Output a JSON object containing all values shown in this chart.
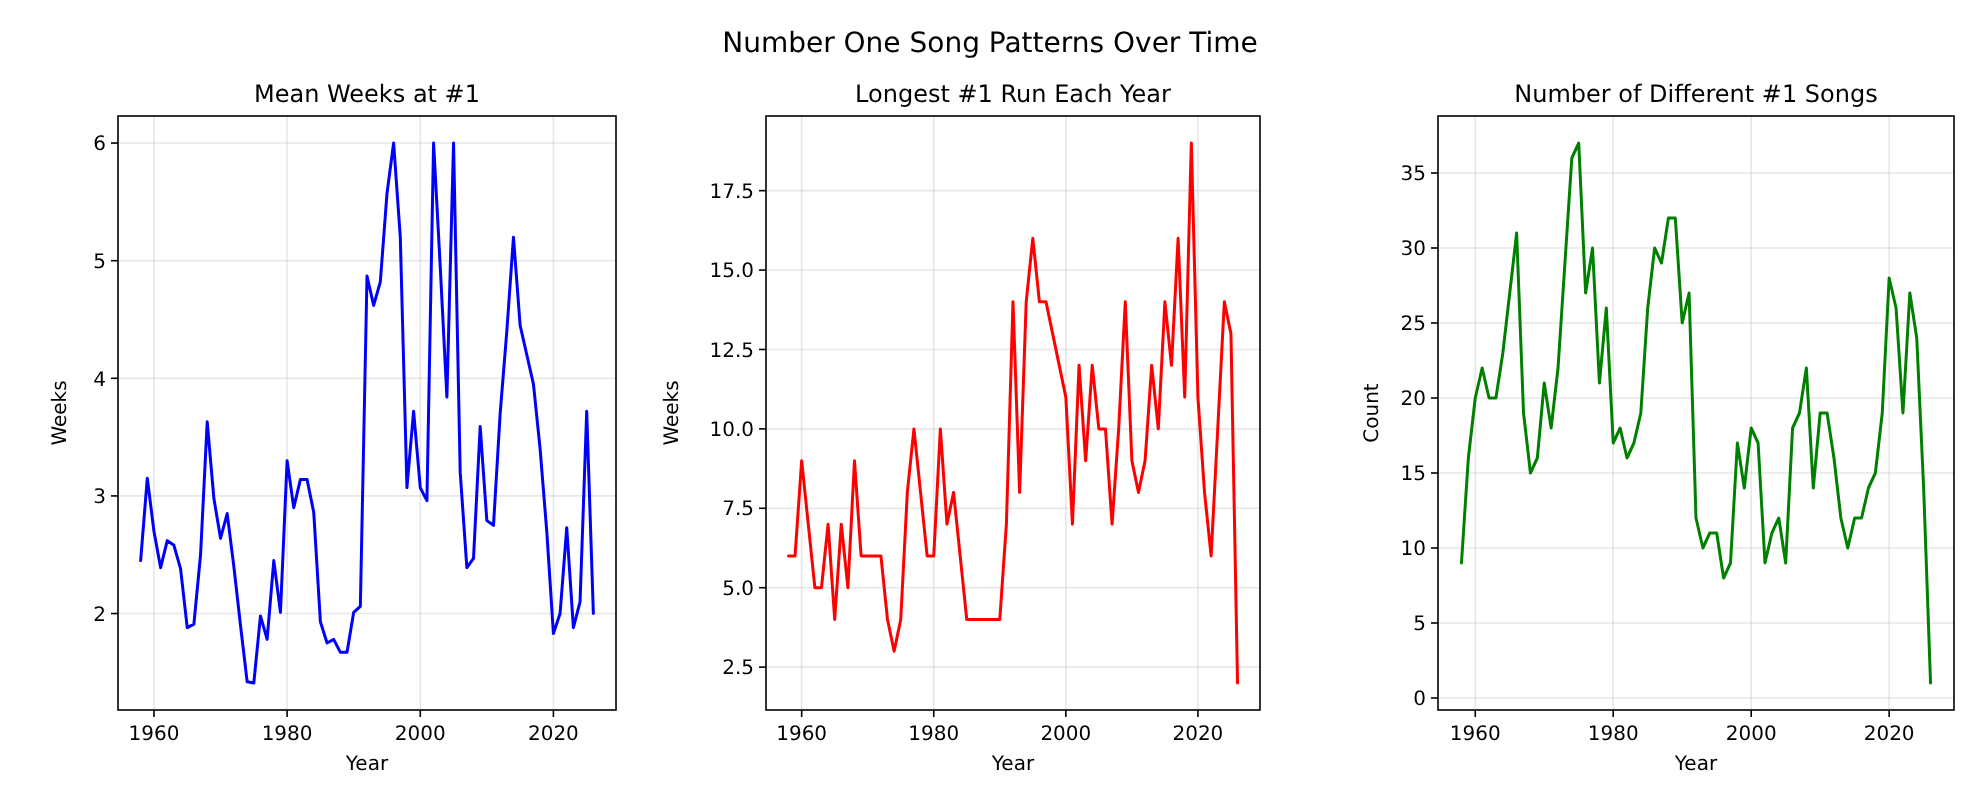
{
  "chart_data": [
    {
      "type": "line",
      "annotations": [
        "Number One Song Patterns Over Time"
      ],
      "title": "Mean Weeks at #1",
      "xlabel": "Year",
      "ylabel": "Weeks",
      "x": [
        1958,
        1959,
        1960,
        1961,
        1962,
        1963,
        1964,
        1965,
        1966,
        1967,
        1968,
        1969,
        1970,
        1971,
        1972,
        1973,
        1974,
        1975,
        1976,
        1977,
        1978,
        1979,
        1980,
        1981,
        1982,
        1983,
        1984,
        1985,
        1986,
        1987,
        1988,
        1989,
        1990,
        1991,
        1992,
        1993,
        1994,
        1995,
        1996,
        1997,
        1998,
        1999,
        2000,
        2001,
        2002,
        2003,
        2004,
        2005,
        2006,
        2007,
        2008,
        2009,
        2010,
        2011,
        2012,
        2013,
        2014,
        2015,
        2016,
        2017,
        2018,
        2019,
        2020,
        2021,
        2022,
        2023,
        2024,
        2025,
        2026
      ],
      "series": [
        {
          "color": "#0000ff",
          "values": [
            2.45,
            3.15,
            2.7,
            2.39,
            2.62,
            2.58,
            2.38,
            1.88,
            1.91,
            2.5,
            3.63,
            2.98,
            2.64,
            2.85,
            2.4,
            1.9,
            1.42,
            1.41,
            1.98,
            1.78,
            2.45,
            2.01,
            3.3,
            2.9,
            3.14,
            3.14,
            2.86,
            1.93,
            1.75,
            1.78,
            1.67,
            1.67,
            2.01,
            2.06,
            4.87,
            4.62,
            4.82,
            5.57,
            6.0,
            5.2,
            3.07,
            3.72,
            3.07,
            2.96,
            6.0,
            4.95,
            3.84,
            6.0,
            3.2,
            2.39,
            2.47,
            3.59,
            2.79,
            2.75,
            3.7,
            4.4,
            5.2,
            4.45,
            4.2,
            3.95,
            3.4,
            2.7,
            1.83,
            2.0,
            2.73,
            1.88,
            2.1,
            3.72,
            2.0
          ]
        }
      ],
      "xlim": [
        1954.6,
        2029.4
      ],
      "xticks": [
        1960,
        1980,
        2000,
        2020
      ],
      "ylim": [
        1.18,
        6.23
      ],
      "yticks": [
        2,
        3,
        4,
        5,
        6
      ],
      "grid": true
    },
    {
      "type": "line",
      "title": "Longest #1 Run Each Year",
      "xlabel": "Year",
      "ylabel": "Weeks",
      "x": [
        1958,
        1959,
        1960,
        1961,
        1962,
        1963,
        1964,
        1965,
        1966,
        1967,
        1968,
        1969,
        1970,
        1971,
        1972,
        1973,
        1974,
        1975,
        1976,
        1977,
        1978,
        1979,
        1980,
        1981,
        1982,
        1983,
        1984,
        1985,
        1986,
        1987,
        1988,
        1989,
        1990,
        1991,
        1992,
        1993,
        1994,
        1995,
        1996,
        1997,
        1998,
        1999,
        2000,
        2001,
        2002,
        2003,
        2004,
        2005,
        2006,
        2007,
        2008,
        2009,
        2010,
        2011,
        2012,
        2013,
        2014,
        2015,
        2016,
        2017,
        2018,
        2019,
        2020,
        2021,
        2022,
        2023,
        2024,
        2025,
        2026
      ],
      "series": [
        {
          "color": "#ff0000",
          "values": [
            6,
            6,
            9,
            7,
            5,
            5,
            7,
            4,
            7,
            5,
            9,
            6,
            6,
            6,
            6,
            4,
            3,
            4,
            8,
            10,
            8,
            6,
            6,
            10,
            7,
            8,
            6,
            4,
            4,
            4,
            4,
            4,
            4,
            7,
            14,
            8,
            14,
            16,
            14,
            14,
            13,
            12,
            11,
            7,
            12,
            9,
            12,
            10,
            10,
            7,
            10,
            14,
            9,
            8,
            9,
            12,
            10,
            14,
            12,
            16,
            11,
            19,
            11,
            8,
            6,
            10,
            14,
            13,
            2
          ]
        }
      ],
      "xlim": [
        1954.6,
        2029.4
      ],
      "xticks": [
        1960,
        1980,
        2000,
        2020
      ],
      "ylim": [
        1.15,
        19.85
      ],
      "yticks": [
        {
          "value": 2.5,
          "label": "2.5"
        },
        {
          "value": 5,
          "label": "5.0"
        },
        {
          "value": 7.5,
          "label": "7.5"
        },
        {
          "value": 10,
          "label": "10.0"
        },
        {
          "value": 12.5,
          "label": "12.5"
        },
        {
          "value": 15,
          "label": "15.0"
        },
        {
          "value": 17.5,
          "label": "17.5"
        }
      ],
      "grid": true
    },
    {
      "type": "line",
      "title": "Number of Different #1 Songs",
      "xlabel": "Year",
      "ylabel": "Count",
      "x": [
        1958,
        1959,
        1960,
        1961,
        1962,
        1963,
        1964,
        1965,
        1966,
        1967,
        1968,
        1969,
        1970,
        1971,
        1972,
        1973,
        1974,
        1975,
        1976,
        1977,
        1978,
        1979,
        1980,
        1981,
        1982,
        1983,
        1984,
        1985,
        1986,
        1987,
        1988,
        1989,
        1990,
        1991,
        1992,
        1993,
        1994,
        1995,
        1996,
        1997,
        1998,
        1999,
        2000,
        2001,
        2002,
        2003,
        2004,
        2005,
        2006,
        2007,
        2008,
        2009,
        2010,
        2011,
        2012,
        2013,
        2014,
        2015,
        2016,
        2017,
        2018,
        2019,
        2020,
        2021,
        2022,
        2023,
        2024,
        2025,
        2026
      ],
      "series": [
        {
          "color": "#008000",
          "values": [
            9,
            16,
            20,
            22,
            20,
            20,
            23,
            27,
            31,
            19,
            15,
            16,
            21,
            18,
            22,
            29,
            36,
            37,
            27,
            30,
            21,
            26,
            17,
            18,
            16,
            17,
            19,
            26,
            30,
            29,
            32,
            32,
            25,
            27,
            12,
            10,
            11,
            11,
            8,
            9,
            17,
            14,
            18,
            17,
            9,
            11,
            12,
            9,
            18,
            19,
            22,
            14,
            19,
            19,
            16,
            12,
            10,
            12,
            12,
            14,
            15,
            19,
            28,
            26,
            19,
            27,
            24,
            14,
            1
          ]
        }
      ],
      "xlim": [
        1954.6,
        2029.4
      ],
      "xticks": [
        1960,
        1980,
        2000,
        2020
      ],
      "ylim": [
        -0.8,
        38.8
      ],
      "yticks": [
        0,
        5,
        10,
        15,
        20,
        25,
        30,
        35
      ],
      "grid": true
    }
  ]
}
